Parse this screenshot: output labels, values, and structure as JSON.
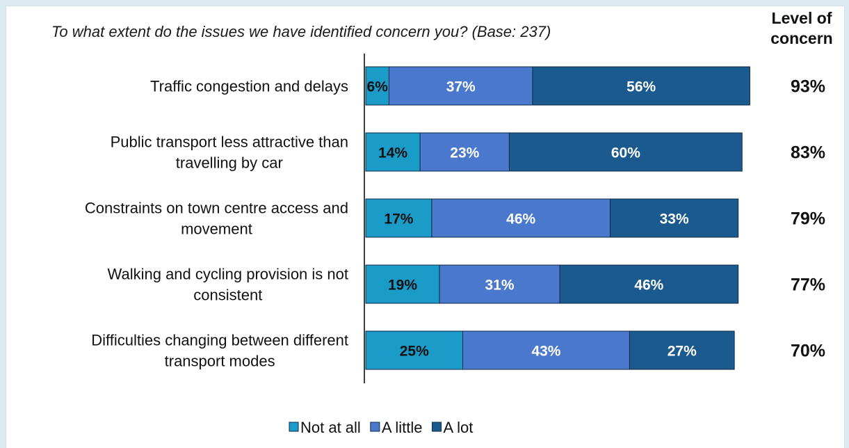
{
  "chart_data": {
    "type": "bar",
    "orientation": "horizontal",
    "stacked": true,
    "title": "To what extent do the issues we have identified concern you? (Base: 237)",
    "unit": "%",
    "xlim": [
      0,
      100
    ],
    "categories": [
      "Traffic congestion and delays",
      "Public transport less attractive than travelling by car",
      "Constraints on town centre access and movement",
      "Walking and cycling provision is not consistent",
      "Difficulties changing between different transport modes"
    ],
    "category_lines": [
      [
        "Traffic congestion and delays"
      ],
      [
        "Public transport less attractive than",
        "travelling by car"
      ],
      [
        "Constraints on town centre access and",
        "movement"
      ],
      [
        "Walking and cycling provision is not",
        "consistent"
      ],
      [
        "Difficulties changing between different",
        "transport modes"
      ]
    ],
    "series": [
      {
        "name": "Not at all",
        "color": "#1a9bc8",
        "text_color": "#111111",
        "values": [
          6,
          14,
          17,
          19,
          25
        ]
      },
      {
        "name": "A little",
        "color": "#4a78cc",
        "text_color": "#ffffff",
        "values": [
          37,
          23,
          46,
          31,
          43
        ]
      },
      {
        "name": "A lot",
        "color": "#1b5a8f",
        "text_color": "#ffffff",
        "values": [
          56,
          60,
          33,
          46,
          27
        ]
      }
    ],
    "level_of_concern": {
      "title_lines": [
        "Level of",
        "concern"
      ],
      "values": [
        "93%",
        "83%",
        "79%",
        "77%",
        "70%"
      ]
    },
    "legend_position": "bottom",
    "grid": false
  }
}
